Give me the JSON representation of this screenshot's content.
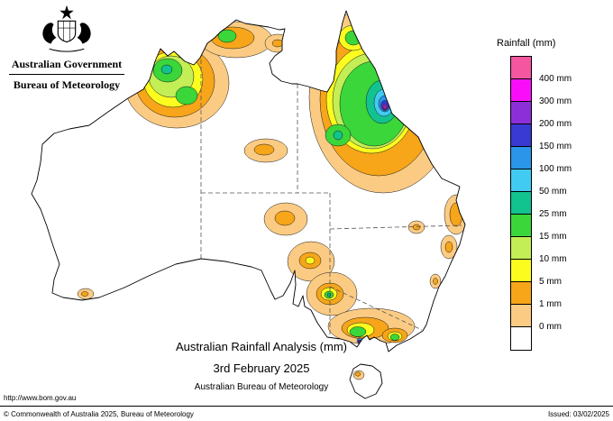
{
  "header": {
    "crest_icon": "australian-coat-of-arms",
    "gov_title": "Australian Government",
    "dept_title": "Bureau of Meteorology"
  },
  "map": {
    "title": "Australian Rainfall Analysis (mm)",
    "date": "3rd February 2025",
    "attribution": "Australian Bureau of Meteorology"
  },
  "legend": {
    "title": "Rainfall (mm)",
    "bands": [
      {
        "label": "400 mm",
        "color": "#f4569f"
      },
      {
        "label": "300 mm",
        "color": "#fa0efa"
      },
      {
        "label": "200 mm",
        "color": "#8c2fd8"
      },
      {
        "label": "150 mm",
        "color": "#3939d3"
      },
      {
        "label": "100 mm",
        "color": "#2a95e9"
      },
      {
        "label": "50 mm",
        "color": "#41cbf2"
      },
      {
        "label": "25 mm",
        "color": "#12c28f"
      },
      {
        "label": "15 mm",
        "color": "#3ad63a"
      },
      {
        "label": "10 mm",
        "color": "#c3ee55"
      },
      {
        "label": "5 mm",
        "color": "#fcfc1f"
      },
      {
        "label": "1 mm",
        "color": "#f7a519"
      },
      {
        "label": "0 mm",
        "color": "#fbcb84"
      },
      {
        "label": null,
        "color": "#ffffff"
      }
    ]
  },
  "footer": {
    "url": "http://www.bom.gov.au",
    "copyright": "© Commonwealth of Australia 2025, Bureau of Meteorology",
    "issued": "Issued: 03/02/2025"
  }
}
